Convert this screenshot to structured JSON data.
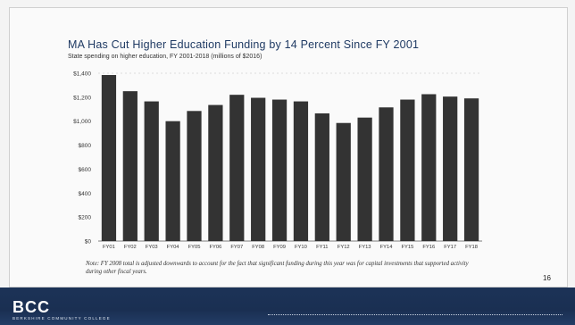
{
  "slide": {
    "page_number": "16",
    "footnote": "Note: FY 2008 total is adjusted downwards to account for the fact that significant funding during this year was for capital investments that supported activity during other fiscal years.",
    "footer": {
      "logo": "BCC",
      "tagline": "BERKSHIRE COMMUNITY COLLEGE"
    }
  },
  "colors": {
    "bar": "#333333",
    "frame": "#d0d0d0",
    "footer": "#1c3357",
    "title": "#1f3a63"
  },
  "chart_data": {
    "type": "bar",
    "title": "MA Has Cut Higher Education Funding by 14 Percent Since FY 2001",
    "subtitle": "State spending on higher education, FY 2001-2018 (millions of $2016)",
    "categories": [
      "FY01",
      "FY02",
      "FY03",
      "FY04",
      "FY05",
      "FY06",
      "FY07",
      "FY08",
      "FY09",
      "FY10",
      "FY11",
      "FY12",
      "FY13",
      "FY14",
      "FY15",
      "FY16",
      "FY17",
      "FY18"
    ],
    "values": [
      1385,
      1250,
      1165,
      1000,
      1085,
      1135,
      1220,
      1195,
      1180,
      1165,
      1065,
      985,
      1030,
      1115,
      1180,
      1225,
      1205,
      1190
    ],
    "ylim": [
      0,
      1400
    ],
    "yticks": [
      0,
      200,
      400,
      600,
      800,
      1000,
      1200,
      1400
    ],
    "ytick_labels": [
      "$0",
      "$200",
      "$400",
      "$600",
      "$800",
      "$1,000",
      "$1,200",
      "$1,400"
    ],
    "grid": false
  }
}
